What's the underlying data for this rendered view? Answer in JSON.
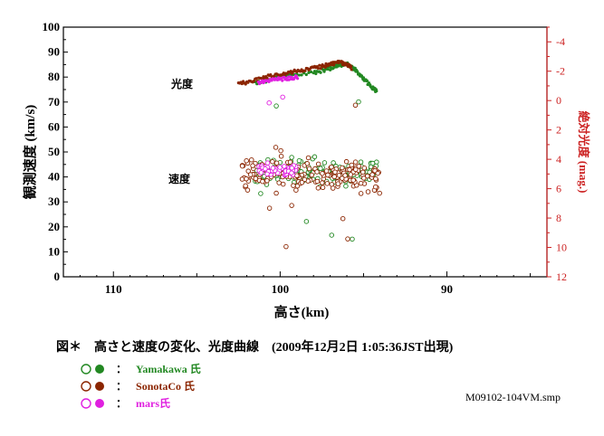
{
  "chart_data": {
    "type": "scatter",
    "xlabel": "高さ(km)",
    "ylabel": "観測速度 (km/s)",
    "y2label": "絶対光度 (mag.)",
    "xlim": [
      113,
      84
    ],
    "ylim": [
      0,
      100
    ],
    "y2lim": [
      12,
      -5
    ],
    "x_ticks": [
      110,
      100,
      90
    ],
    "y_ticks": [
      0,
      10,
      20,
      30,
      40,
      50,
      60,
      70,
      80,
      90,
      100
    ],
    "y2_ticks": [
      12,
      10,
      8,
      6,
      4,
      2,
      0,
      -2,
      -4
    ],
    "grid": false,
    "annotations": [
      "光度",
      "速度"
    ],
    "series": [
      {
        "name": "Yamakawa 氏",
        "color": "#228822",
        "kind": "speed",
        "x_range": [
          101.5,
          94.2
        ],
        "y_center": 42,
        "y_spread": 7,
        "count": 180
      },
      {
        "name": "SonotaCo 氏",
        "color": "#8b2500",
        "kind": "speed",
        "x_range": [
          102.5,
          94.0
        ],
        "y_center": 41,
        "y_spread": 9,
        "count": 190
      },
      {
        "name": "mars氏",
        "color": "#e020e0",
        "kind": "speed",
        "x_range": [
          101.3,
          98.9
        ],
        "y_center": 43,
        "y_spread": 3,
        "count": 50
      },
      {
        "name": "Yamakawa 氏",
        "color": "#228822",
        "kind": "magnitude",
        "x": [
          101.5,
          100,
          98,
          97,
          96.5,
          96,
          95.5,
          95,
          94.5,
          94.2
        ],
        "mag": [
          -1.2,
          -1.6,
          -1.9,
          -2.2,
          -2.4,
          -2.5,
          -2.1,
          -1.5,
          -0.9,
          -0.6
        ]
      },
      {
        "name": "SonotaCo 氏",
        "color": "#8b2500",
        "kind": "magnitude",
        "x": [
          102.5,
          101.5,
          100.5,
          99.5,
          98.5,
          97.5,
          97,
          96.5,
          96,
          95.7
        ],
        "mag": [
          -1.1,
          -1.4,
          -1.7,
          -1.9,
          -2.1,
          -2.3,
          -2.5,
          -2.6,
          -2.5,
          -2.2
        ]
      },
      {
        "name": "mars氏",
        "color": "#e020e0",
        "kind": "magnitude",
        "x": [
          101.3,
          100.5,
          99.7,
          98.9
        ],
        "mag": [
          -1.2,
          -1.4,
          -1.5,
          -1.6
        ]
      }
    ]
  },
  "caption": "図＊　高さと速度の変化、光度曲線　(2009年12月2日 1:05:36JST出現)",
  "legend": [
    {
      "label": "Yamakawa 氏",
      "color": "#228822"
    },
    {
      "label": "SonotaCo 氏",
      "color": "#8b2500"
    },
    {
      "label": "mars氏",
      "color": "#e020e0"
    }
  ],
  "legend_separator": "：",
  "filename": "M09102-104VM.smp"
}
